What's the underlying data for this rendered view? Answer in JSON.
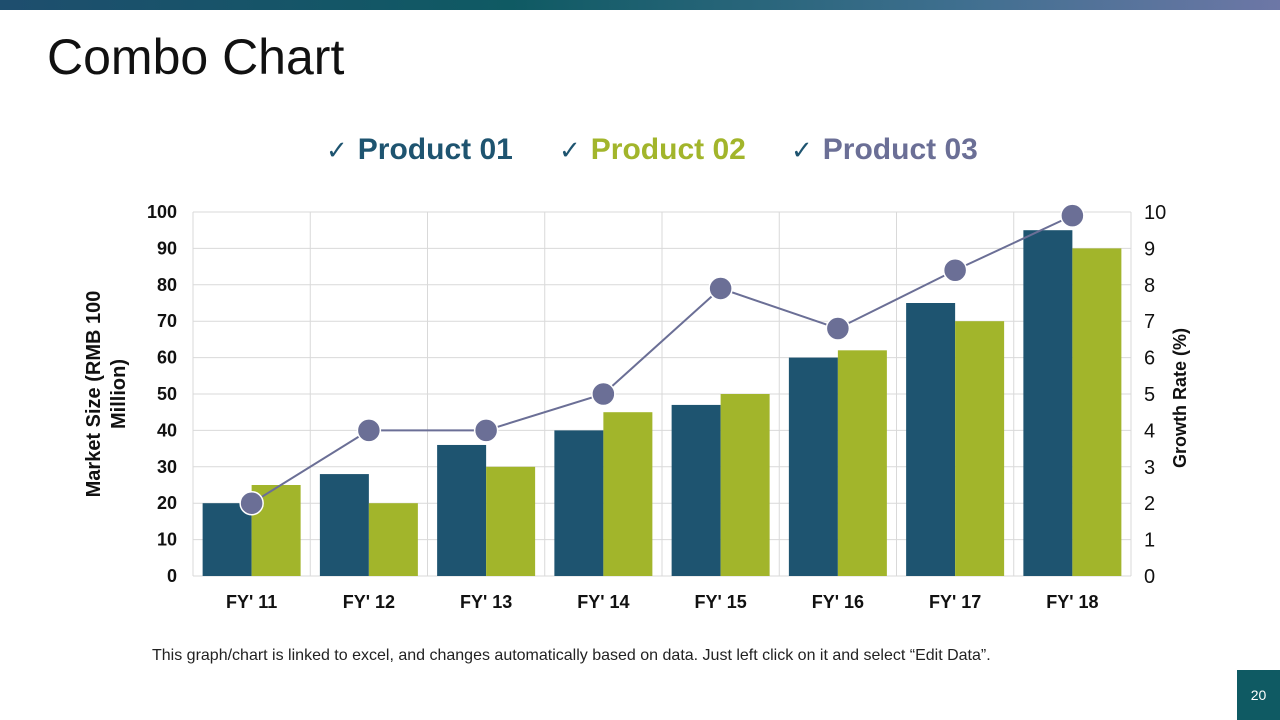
{
  "slide": {
    "title": "Combo Chart",
    "footnote": "This graph/chart is linked to excel, and changes automatically based on data. Just left click on it and select “Edit Data”.",
    "page_number": "20"
  },
  "legend": {
    "check_glyph": "✓",
    "items": [
      {
        "label": "Product 01",
        "color": "#1e5470"
      },
      {
        "label": "Product 02",
        "color": "#a2b52b"
      },
      {
        "label": "Product 03",
        "color": "#6b6f96"
      }
    ]
  },
  "colors": {
    "accent_teal": "#0f5a63",
    "grid": "#d9d9d9"
  },
  "chart_data": {
    "type": "bar",
    "categories": [
      "FY' 11",
      "FY' 12",
      "FY' 13",
      "FY' 14",
      "FY' 15",
      "FY' 16",
      "FY' 17",
      "FY' 18"
    ],
    "series": [
      {
        "name": "Product 01",
        "type": "bar",
        "axis": "left",
        "color": "#1e5470",
        "values": [
          20,
          28,
          36,
          40,
          47,
          60,
          75,
          95
        ]
      },
      {
        "name": "Product 02",
        "type": "bar",
        "axis": "left",
        "color": "#a2b52b",
        "values": [
          25,
          20,
          30,
          45,
          50,
          62,
          70,
          90
        ]
      },
      {
        "name": "Product 03",
        "type": "line",
        "axis": "right",
        "color": "#6b6f96",
        "values": [
          2,
          4,
          4,
          5,
          7.9,
          6.8,
          8.4,
          9.9
        ]
      }
    ],
    "ylabel": "Market Size (RMB 100 Million)",
    "ylabel_lines": [
      "Market Size (RMB 100",
      "Million)"
    ],
    "y2label": "Growth  Rate (%)",
    "ylim": [
      0,
      100
    ],
    "y2lim": [
      0,
      10
    ],
    "yticks": [
      0,
      10,
      20,
      30,
      40,
      50,
      60,
      70,
      80,
      90,
      100
    ],
    "y2ticks": [
      0,
      1,
      2,
      3,
      4,
      5,
      6,
      7,
      8,
      9,
      10
    ],
    "grid": true,
    "legend_position": "top"
  }
}
